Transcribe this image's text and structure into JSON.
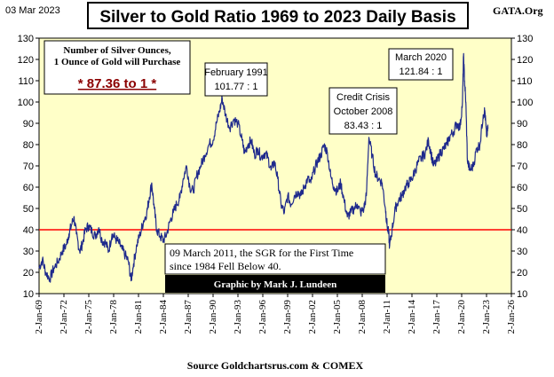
{
  "header": {
    "date": "03 Mar 2023",
    "title": "Silver to Gold Ratio 1969 to 2023 Daily Basis",
    "brand": "GATA.Org"
  },
  "colors": {
    "plot_bg": "#ffffc8",
    "series": "#1f2a8c",
    "threshold_line": "#ff0000",
    "ratio_text": "#8b0000",
    "credit_bar": "#000000"
  },
  "callouts": {
    "box_line1": "Number of Silver Ounces,",
    "box_line2": "1 Ounce of Gold will Purchase",
    "box_ratio": "* 87.36 to 1 *",
    "feb1991_line1": "February 1991",
    "feb1991_line2": "101.77  : 1",
    "crisis_line1": "Credit Crisis",
    "crisis_line2": "October 2008",
    "crisis_line3": "83.43  : 1",
    "march2020_line1": "March  2020",
    "march2020_line2": "121.84  : 1",
    "note_line1": "09 March 2011, the SGR for the First Time",
    "note_line2": "since 1984 Fell Below 40.",
    "credit": "Graphic by Mark J. Lundeen",
    "source": "Source Goldchartsrus.com & COMEX"
  },
  "chart_data": {
    "type": "line",
    "title": "Silver to Gold Ratio 1969 to 2023 Daily Basis",
    "xlabel": "",
    "ylabel": "",
    "x_tick_labels": [
      "2-Jan-69",
      "2-Jan-72",
      "2-Jan-75",
      "2-Jan-78",
      "2-Jan-81",
      "2-Jan-84",
      "2-Jan-87",
      "2-Jan-90",
      "2-Jan-93",
      "2-Jan-96",
      "2-Jan-99",
      "2-Jan-02",
      "2-Jan-05",
      "2-Jan-08",
      "2-Jan-11",
      "2-Jan-14",
      "2-Jan-17",
      "2-Jan-20",
      "2-Jan-23",
      "2-Jan-26"
    ],
    "xlim": [
      1969,
      2026
    ],
    "y_ticks": [
      10,
      20,
      30,
      40,
      50,
      60,
      70,
      80,
      90,
      100,
      110,
      120,
      130
    ],
    "ylim": [
      10,
      130
    ],
    "grid": false,
    "reference_line": {
      "y": 40
    },
    "series": [
      {
        "points": [
          [
            1969.0,
            22
          ],
          [
            1969.4,
            26
          ],
          [
            1969.8,
            20
          ],
          [
            1970.3,
            17
          ],
          [
            1970.8,
            22
          ],
          [
            1971.3,
            25
          ],
          [
            1971.8,
            30
          ],
          [
            1972.3,
            33
          ],
          [
            1972.6,
            38
          ],
          [
            1972.9,
            42
          ],
          [
            1973.2,
            46
          ],
          [
            1973.5,
            38
          ],
          [
            1973.9,
            30
          ],
          [
            1974.2,
            33
          ],
          [
            1974.6,
            40
          ],
          [
            1975.0,
            42
          ],
          [
            1975.4,
            39
          ],
          [
            1975.8,
            37
          ],
          [
            1976.2,
            41
          ],
          [
            1976.6,
            35
          ],
          [
            1977.0,
            34
          ],
          [
            1977.4,
            30
          ],
          [
            1977.8,
            38
          ],
          [
            1978.2,
            36
          ],
          [
            1978.6,
            34
          ],
          [
            1979.0,
            31
          ],
          [
            1979.4,
            28
          ],
          [
            1979.8,
            25
          ],
          [
            1980.1,
            16
          ],
          [
            1980.4,
            24
          ],
          [
            1980.8,
            33
          ],
          [
            1981.2,
            38
          ],
          [
            1981.6,
            44
          ],
          [
            1982.0,
            48
          ],
          [
            1982.3,
            55
          ],
          [
            1982.6,
            62
          ],
          [
            1982.9,
            50
          ],
          [
            1983.2,
            40
          ],
          [
            1983.6,
            37
          ],
          [
            1984.0,
            35
          ],
          [
            1984.4,
            38
          ],
          [
            1984.8,
            44
          ],
          [
            1985.2,
            48
          ],
          [
            1985.6,
            52
          ],
          [
            1986.0,
            55
          ],
          [
            1986.4,
            64
          ],
          [
            1986.8,
            70
          ],
          [
            1987.2,
            60
          ],
          [
            1987.6,
            58
          ],
          [
            1988.0,
            65
          ],
          [
            1988.5,
            70
          ],
          [
            1989.0,
            75
          ],
          [
            1989.5,
            80
          ],
          [
            1990.0,
            82
          ],
          [
            1990.4,
            90
          ],
          [
            1990.8,
            96
          ],
          [
            1991.1,
            101.77
          ],
          [
            1991.5,
            94
          ],
          [
            1992.0,
            88
          ],
          [
            1992.5,
            92
          ],
          [
            1993.0,
            90
          ],
          [
            1993.5,
            82
          ],
          [
            1993.8,
            76
          ],
          [
            1994.2,
            80
          ],
          [
            1994.6,
            82
          ],
          [
            1995.0,
            75
          ],
          [
            1995.4,
            78
          ],
          [
            1995.8,
            74
          ],
          [
            1996.2,
            76
          ],
          [
            1996.6,
            74
          ],
          [
            1997.0,
            68
          ],
          [
            1997.4,
            72
          ],
          [
            1997.8,
            64
          ],
          [
            1998.2,
            52
          ],
          [
            1998.6,
            48
          ],
          [
            1999.0,
            56
          ],
          [
            1999.4,
            52
          ],
          [
            1999.8,
            56
          ],
          [
            2000.2,
            58
          ],
          [
            2000.6,
            56
          ],
          [
            2001.0,
            60
          ],
          [
            2001.4,
            64
          ],
          [
            2001.8,
            62
          ],
          [
            2002.2,
            68
          ],
          [
            2002.6,
            72
          ],
          [
            2003.0,
            75
          ],
          [
            2003.4,
            80
          ],
          [
            2003.8,
            76
          ],
          [
            2004.2,
            65
          ],
          [
            2004.6,
            60
          ],
          [
            2005.0,
            58
          ],
          [
            2005.4,
            62
          ],
          [
            2005.8,
            54
          ],
          [
            2006.2,
            46
          ],
          [
            2006.6,
            48
          ],
          [
            2007.0,
            50
          ],
          [
            2007.4,
            52
          ],
          [
            2007.8,
            48
          ],
          [
            2008.2,
            50
          ],
          [
            2008.5,
            56
          ],
          [
            2008.8,
            83.43
          ],
          [
            2009.2,
            75
          ],
          [
            2009.6,
            66
          ],
          [
            2010.0,
            64
          ],
          [
            2010.4,
            62
          ],
          [
            2010.8,
            50
          ],
          [
            2011.0,
            42
          ],
          [
            2011.2,
            38
          ],
          [
            2011.3,
            32
          ],
          [
            2011.6,
            40
          ],
          [
            2012.0,
            50
          ],
          [
            2012.4,
            54
          ],
          [
            2012.8,
            56
          ],
          [
            2013.2,
            60
          ],
          [
            2013.6,
            62
          ],
          [
            2014.0,
            64
          ],
          [
            2014.4,
            68
          ],
          [
            2014.8,
            72
          ],
          [
            2015.2,
            74
          ],
          [
            2015.6,
            76
          ],
          [
            2016.0,
            82
          ],
          [
            2016.3,
            76
          ],
          [
            2016.6,
            70
          ],
          [
            2017.0,
            72
          ],
          [
            2017.4,
            76
          ],
          [
            2017.8,
            78
          ],
          [
            2018.2,
            80
          ],
          [
            2018.6,
            84
          ],
          [
            2019.0,
            86
          ],
          [
            2019.4,
            90
          ],
          [
            2019.8,
            88
          ],
          [
            2020.1,
            100
          ],
          [
            2020.22,
            121.84
          ],
          [
            2020.35,
            110
          ],
          [
            2020.5,
            100
          ],
          [
            2020.7,
            72
          ],
          [
            2021.0,
            68
          ],
          [
            2021.4,
            70
          ],
          [
            2021.8,
            78
          ],
          [
            2022.2,
            80
          ],
          [
            2022.6,
            94
          ],
          [
            2022.8,
            96
          ],
          [
            2023.0,
            84
          ],
          [
            2023.17,
            87.36
          ]
        ]
      }
    ]
  }
}
